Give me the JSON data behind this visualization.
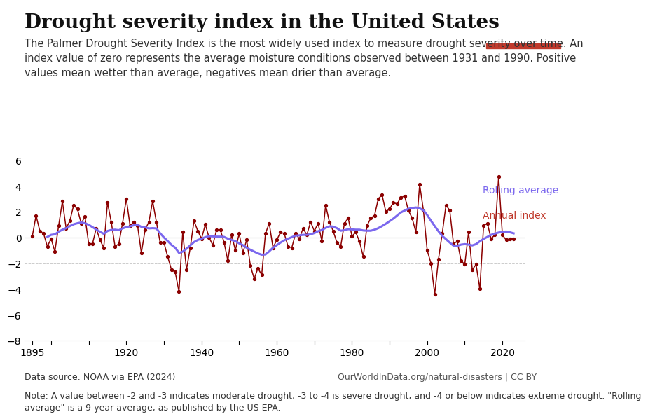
{
  "title": "Drought severity index in the United States",
  "subtitle": "The Palmer Drought Severity Index is the most widely used index to measure drought severity over time. An\nindex value of zero represents the average moisture conditions observed between 1931 and 1990. Positive\nvalues mean wetter than average, negatives mean drier than average.",
  "data_source": "Data source: NOAA via EPA (2024)",
  "note": "Note: A value between -2 and -3 indicates moderate drought, -3 to -4 is severe drought, and -4 or below indicates extreme drought. \"Rolling\naverage\" is a 9-year average, as published by the US EPA.",
  "url": "OurWorldInData.org/natural-disasters | CC BY",
  "years": [
    1895,
    1896,
    1897,
    1898,
    1899,
    1900,
    1901,
    1902,
    1903,
    1904,
    1905,
    1906,
    1907,
    1908,
    1909,
    1910,
    1911,
    1912,
    1913,
    1914,
    1915,
    1916,
    1917,
    1918,
    1919,
    1920,
    1921,
    1922,
    1923,
    1924,
    1925,
    1926,
    1927,
    1928,
    1929,
    1930,
    1931,
    1932,
    1933,
    1934,
    1935,
    1936,
    1937,
    1938,
    1939,
    1940,
    1941,
    1942,
    1943,
    1944,
    1945,
    1946,
    1947,
    1948,
    1949,
    1950,
    1951,
    1952,
    1953,
    1954,
    1955,
    1956,
    1957,
    1958,
    1959,
    1960,
    1961,
    1962,
    1963,
    1964,
    1965,
    1966,
    1967,
    1968,
    1969,
    1970,
    1971,
    1972,
    1973,
    1974,
    1975,
    1976,
    1977,
    1978,
    1979,
    1980,
    1981,
    1982,
    1983,
    1984,
    1985,
    1986,
    1987,
    1988,
    1989,
    1990,
    1991,
    1992,
    1993,
    1994,
    1995,
    1996,
    1997,
    1998,
    1999,
    2000,
    2001,
    2002,
    2003,
    2004,
    2005,
    2006,
    2007,
    2008,
    2009,
    2010,
    2011,
    2012,
    2013,
    2014,
    2015,
    2016,
    2017,
    2018,
    2019,
    2020,
    2021,
    2022,
    2023
  ],
  "annual": [
    0.1,
    1.7,
    0.5,
    0.3,
    -0.7,
    -0.1,
    -1.1,
    0.9,
    2.8,
    0.7,
    1.3,
    2.5,
    2.2,
    1.1,
    1.6,
    -0.5,
    -0.5,
    0.7,
    -0.2,
    -0.8,
    2.7,
    1.2,
    -0.7,
    -0.5,
    1.1,
    3.0,
    0.9,
    1.2,
    0.9,
    -1.2,
    0.6,
    1.2,
    2.8,
    1.2,
    -0.4,
    -0.4,
    -1.5,
    -2.5,
    -2.7,
    -4.2,
    0.4,
    -2.5,
    -0.8,
    1.3,
    0.5,
    -0.1,
    1.0,
    0.0,
    -0.6,
    0.6,
    0.6,
    -0.4,
    -1.8,
    0.2,
    -1.0,
    0.3,
    -1.2,
    -0.2,
    -2.2,
    -3.2,
    -2.4,
    -2.9,
    0.3,
    1.1,
    -0.8,
    -0.2,
    0.4,
    0.3,
    -0.7,
    -0.8,
    0.3,
    -0.1,
    0.7,
    0.2,
    1.2,
    0.5,
    1.1,
    -0.3,
    2.5,
    1.2,
    0.5,
    -0.4,
    -0.7,
    1.1,
    1.5,
    0.1,
    0.4,
    -0.3,
    -1.5,
    0.9,
    1.5,
    1.7,
    3.0,
    3.3,
    2.0,
    2.2,
    2.7,
    2.6,
    3.1,
    3.2,
    2.1,
    1.5,
    0.4,
    4.1,
    2.1,
    -1.0,
    -2.0,
    -4.4,
    -1.7,
    0.3,
    2.5,
    2.1,
    -0.5,
    -0.3,
    -1.8,
    -2.1,
    0.4,
    -2.5,
    -2.1,
    -4.0,
    0.9,
    1.1,
    -0.1,
    0.2,
    4.7,
    0.2,
    -0.2,
    -0.1,
    -0.1
  ],
  "rolling": [
    null,
    null,
    null,
    null,
    0.04,
    0.2,
    0.24,
    0.44,
    0.6,
    0.72,
    0.88,
    1.02,
    1.1,
    1.16,
    1.1,
    0.98,
    0.8,
    0.62,
    0.44,
    0.28,
    0.5,
    0.58,
    0.6,
    0.56,
    0.7,
    0.8,
    0.86,
    0.94,
    0.98,
    0.82,
    0.78,
    0.7,
    0.72,
    0.7,
    0.32,
    0.0,
    -0.28,
    -0.58,
    -0.8,
    -1.2,
    -1.1,
    -0.88,
    -0.62,
    -0.36,
    -0.2,
    -0.1,
    0.02,
    0.1,
    0.08,
    0.06,
    0.06,
    0.04,
    -0.1,
    -0.2,
    -0.28,
    -0.46,
    -0.6,
    -0.8,
    -0.96,
    -1.1,
    -1.24,
    -1.34,
    -1.32,
    -1.08,
    -0.8,
    -0.6,
    -0.4,
    -0.22,
    -0.1,
    0.02,
    0.14,
    0.16,
    0.2,
    0.2,
    0.24,
    0.34,
    0.48,
    0.58,
    0.74,
    0.86,
    0.84,
    0.72,
    0.52,
    0.56,
    0.64,
    0.62,
    0.6,
    0.6,
    0.54,
    0.52,
    0.52,
    0.6,
    0.72,
    0.88,
    1.06,
    1.26,
    1.46,
    1.7,
    1.94,
    2.08,
    2.22,
    2.28,
    2.32,
    2.26,
    2.1,
    1.74,
    1.3,
    0.88,
    0.48,
    0.12,
    -0.14,
    -0.4,
    -0.64,
    -0.66,
    -0.56,
    -0.52,
    -0.56,
    -0.62,
    -0.52,
    -0.3,
    -0.12,
    0.04,
    0.2,
    0.3,
    0.38,
    0.42,
    0.46,
    0.4,
    0.32,
    null,
    null,
    null,
    null
  ],
  "annual_color": "#8B0000",
  "rolling_color": "#7B68EE",
  "background_color": "#ffffff",
  "grid_color": "#cccccc",
  "zero_line_color": "#999999",
  "ylim": [
    -8,
    7
  ],
  "yticks": [
    -8,
    -6,
    -4,
    -2,
    0,
    2,
    4,
    6
  ],
  "xlim": [
    1893,
    2026
  ],
  "xticks": [
    1895,
    1900,
    1910,
    1920,
    1930,
    1940,
    1950,
    1960,
    1970,
    1980,
    1990,
    2000,
    2010,
    2020
  ],
  "owid_box_color": "#1a3a5c",
  "owid_red": "#c0392b",
  "title_fontsize": 20,
  "subtitle_fontsize": 10.5,
  "note_fontsize": 9,
  "source_fontsize": 9,
  "legend_rolling_color": "#7B68EE",
  "legend_annual_color": "#c0392b"
}
